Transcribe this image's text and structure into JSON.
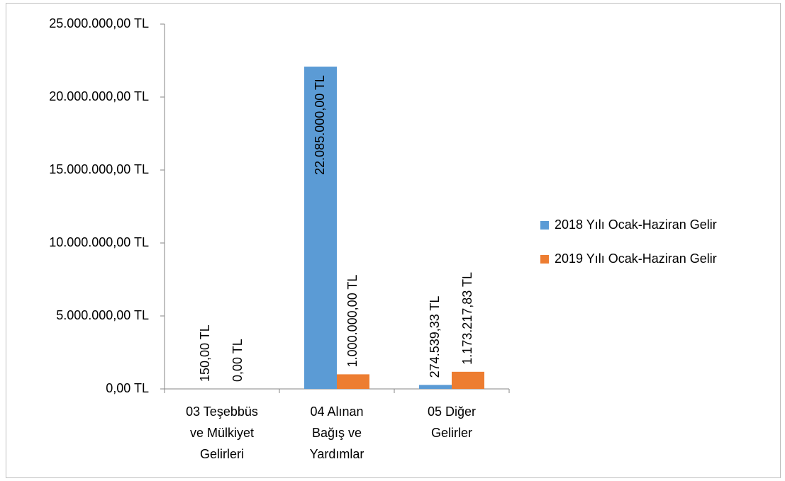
{
  "chart_data": {
    "type": "bar",
    "categories": [
      [
        "03 Teşebbüs",
        "ve Mülkiyet",
        "Gelirleri"
      ],
      [
        "04 Alınan",
        "Bağış ve",
        "Yardımlar"
      ],
      [
        "05 Diğer",
        "Gelirler"
      ]
    ],
    "series": [
      {
        "name": "2018 Yılı Ocak-Haziran Gelir",
        "color": "#5b9bd5",
        "values": [
          150,
          22085000,
          274539.33
        ],
        "value_labels": [
          "150,00 TL",
          "22.085.000,00 TL",
          "274.539,33 TL"
        ]
      },
      {
        "name": "2019 Yılı Ocak-Haziran Gelir",
        "color": "#ed7d31",
        "values": [
          0,
          1000000,
          1173217.83
        ],
        "value_labels": [
          "0,00 TL",
          "1.000.000,00 TL",
          "1.173.217,83 TL"
        ]
      }
    ],
    "ylim": [
      0,
      25000000
    ],
    "yticks": [
      {
        "value": 0,
        "label": "0,00 TL"
      },
      {
        "value": 5000000,
        "label": "5.000.000,00 TL"
      },
      {
        "value": 10000000,
        "label": "10.000.000,00 TL"
      },
      {
        "value": 15000000,
        "label": "15.000.000,00 TL"
      },
      {
        "value": 20000000,
        "label": "20.000.000,00 TL"
      },
      {
        "value": 25000000,
        "label": "25.000.000,00 TL"
      }
    ],
    "legend": "right"
  }
}
